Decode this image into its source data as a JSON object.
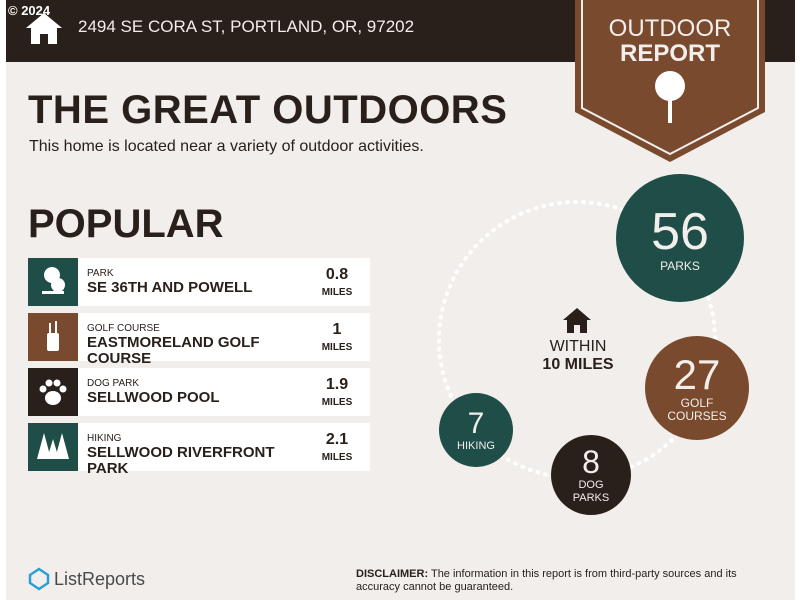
{
  "watermark": "© 2024",
  "header": {
    "address": "2494 SE CORA ST, PORTLAND, OR, 97202",
    "badge": [
      "OUTDOOR",
      "REPORT"
    ]
  },
  "title": "THE GREAT OUTDOORS",
  "subtitle": "This home is located near a variety of outdoor activities.",
  "popular": {
    "heading": "POPULAR",
    "items": [
      {
        "category": "PARK",
        "name": "SE 36TH AND POWELL",
        "distance": 0.8,
        "unit": "MILES"
      },
      {
        "category": "GOLF COURSE",
        "name": "EASTMORELAND GOLF COURSE",
        "distance": 1,
        "unit": "MILES"
      },
      {
        "category": "DOG PARK",
        "name": "SELLWOOD POOL",
        "distance": 1.9,
        "unit": "MILES"
      },
      {
        "category": "HIKING",
        "name": "SELLWOOD RIVERFRONT PARK",
        "distance": 2.1,
        "unit": "MILES"
      }
    ]
  },
  "summary": {
    "center": [
      "WITHIN",
      "10 MILES"
    ],
    "counts": [
      {
        "value": 56,
        "label": [
          "PARKS"
        ]
      },
      {
        "value": 27,
        "label": [
          "GOLF",
          "COURSES"
        ]
      },
      {
        "value": 8,
        "label": [
          "DOG",
          "PARKS"
        ]
      },
      {
        "value": 7,
        "label": [
          "HIKING"
        ]
      }
    ]
  },
  "footer": {
    "brand": "ListReports",
    "disclaimer_label": "DISCLAIMER:",
    "disclaimer": "The information in this report is from third-party sources and its accuracy cannot be guaranteed."
  }
}
